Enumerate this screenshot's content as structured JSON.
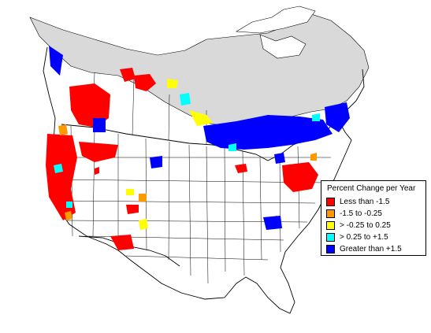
{
  "legend": {
    "title": "Percent Change per Year",
    "items": [
      {
        "label": "Less than -1.5",
        "color": "#ff0000"
      },
      {
        "label": "-1.5 to -0.25",
        "color": "#ff9900"
      },
      {
        "label": "> -0.25 to 0.25",
        "color": "#ffff00"
      },
      {
        "label": "> 0.25 to +1.5",
        "color": "#00ffff"
      },
      {
        "label": "Greater than +1.5",
        "color": "#0000ff"
      }
    ]
  },
  "colors": {
    "background": "#ffffff",
    "no_data_region": "#d9d9d9",
    "boundaries": "#000000"
  }
}
